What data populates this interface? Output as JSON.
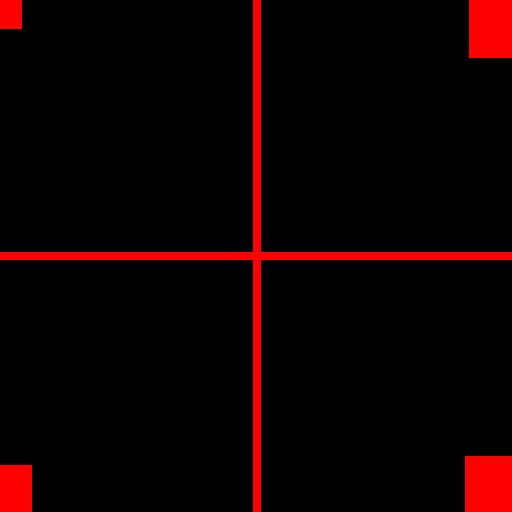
{
  "background_color": "#000000",
  "crosshair": {
    "color": "#ff0000"
  },
  "corner_markers": {
    "color": "#ff0000",
    "items": [
      "top-left",
      "top-right",
      "bottom-left",
      "bottom-right"
    ]
  }
}
